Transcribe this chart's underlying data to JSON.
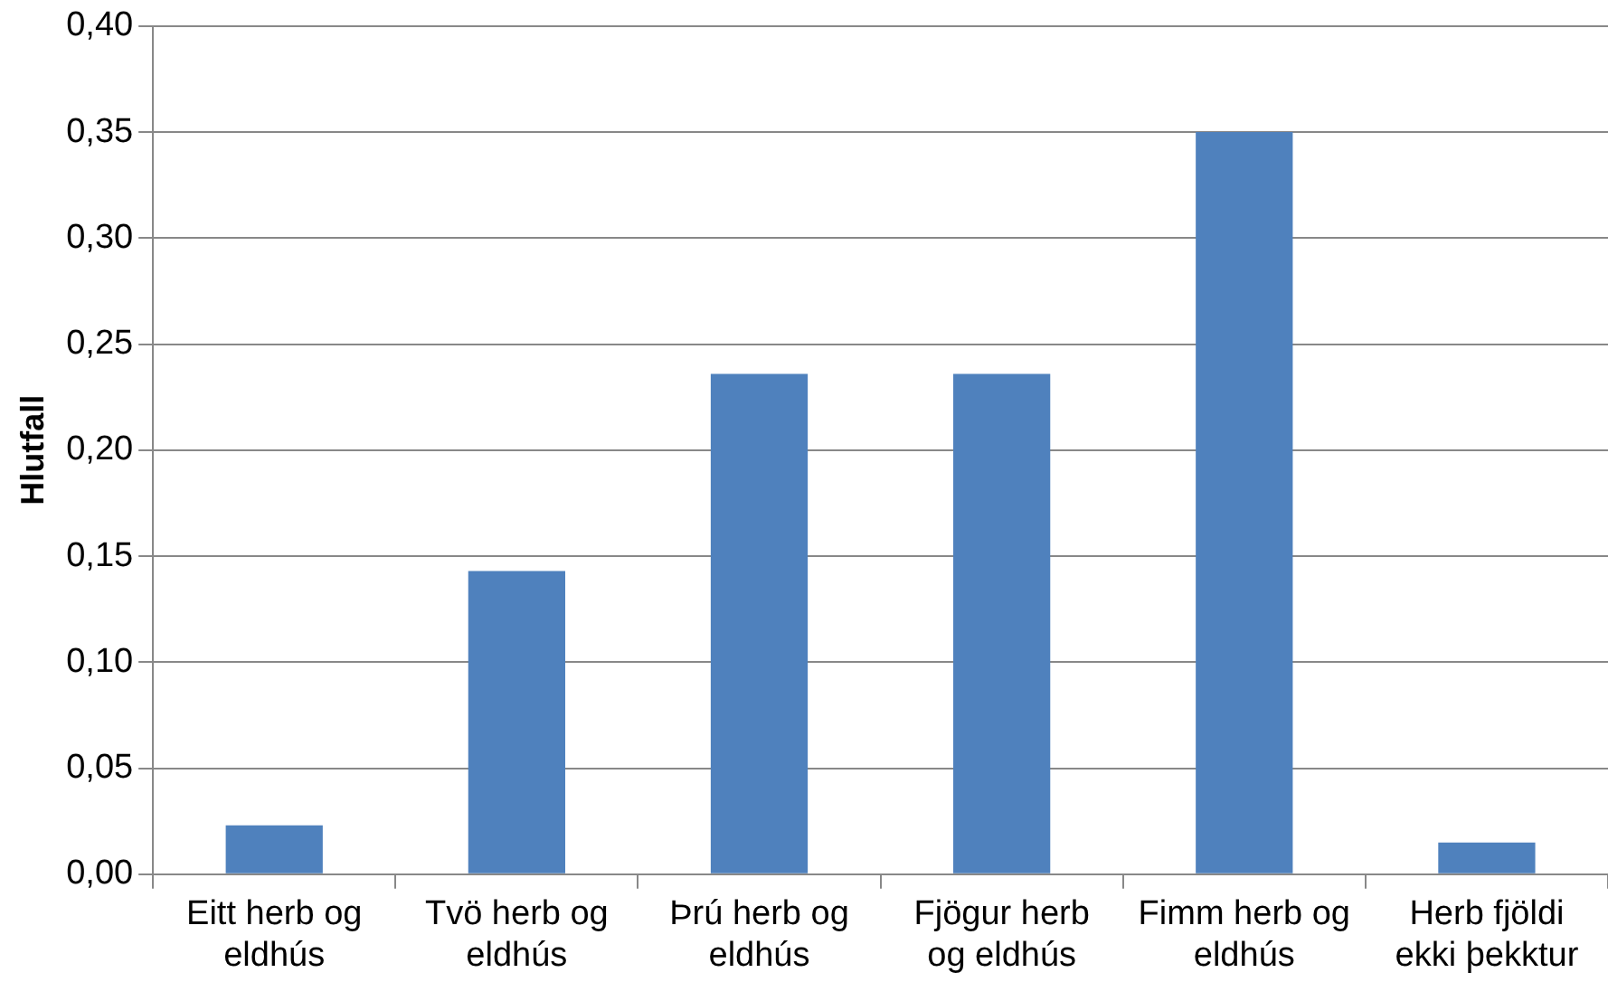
{
  "chart_data": {
    "type": "bar",
    "ylabel": "Hlutfall",
    "categories": [
      "Eitt herb og eldhús",
      "Tvö herb og eldhús",
      "Þrú herb og eldhús",
      "Fjögur herb og eldhús",
      "Fimm herb og eldhús",
      "Herb fjöldi ekki þekktur"
    ],
    "values": [
      0.023,
      0.143,
      0.236,
      0.236,
      0.35,
      0.015
    ],
    "color": "#4f81bd",
    "ylim": [
      0,
      0.4
    ],
    "yticks": [
      {
        "value": 0,
        "label": "0,00"
      },
      {
        "value": 0.05,
        "label": "0,05"
      },
      {
        "value": 0.1,
        "label": "0,10"
      },
      {
        "value": 0.15,
        "label": "0,15"
      },
      {
        "value": 0.2,
        "label": "0,20"
      },
      {
        "value": 0.25,
        "label": "0,25"
      },
      {
        "value": 0.3,
        "label": "0,30"
      },
      {
        "value": 0.35,
        "label": "0,35"
      },
      {
        "value": 0.4,
        "label": "0,40"
      }
    ],
    "grid": "y",
    "legend": false
  }
}
